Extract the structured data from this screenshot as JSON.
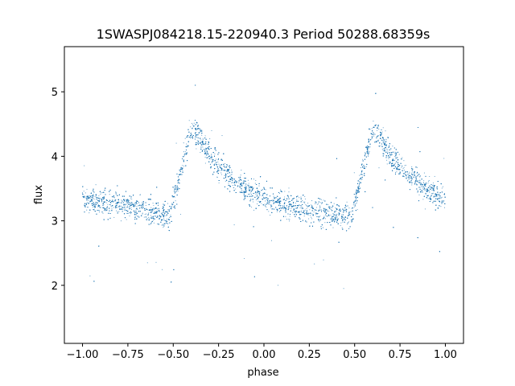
{
  "chart_data": {
    "type": "scatter",
    "title": "1SWASPJ084218.15-220940.3 Period 50288.68359s",
    "xlabel": "phase",
    "ylabel": "flux",
    "xlim": [
      -1.1,
      1.1
    ],
    "ylim": [
      1.1,
      5.7
    ],
    "xticks": [
      -1.0,
      -0.75,
      -0.5,
      -0.25,
      0.0,
      0.25,
      0.5,
      0.75,
      1.0
    ],
    "xtick_labels": [
      "−1.00",
      "−0.75",
      "−0.50",
      "−0.25",
      "0.00",
      "0.25",
      "0.50",
      "0.75",
      "1.00"
    ],
    "yticks": [
      2,
      3,
      4,
      5
    ],
    "ytick_labels": [
      "2",
      "3",
      "4",
      "5"
    ],
    "grid": false,
    "legend": "none",
    "marker_color": "#1f77b4",
    "series": [
      {
        "description_points": "phase-folded light curve, mean flux vs phase (repeated over two cycles)",
        "x": [
          -1.0,
          -0.9,
          -0.8,
          -0.7,
          -0.6,
          -0.52,
          -0.45,
          -0.4,
          -0.35,
          -0.3,
          -0.25,
          -0.2,
          -0.1,
          0.0,
          0.1,
          0.2,
          0.3,
          0.4,
          0.48,
          0.55,
          0.6,
          0.65,
          0.7,
          0.75,
          0.8,
          0.9,
          1.0
        ],
        "y": [
          3.35,
          3.3,
          3.25,
          3.2,
          3.15,
          3.05,
          3.85,
          4.45,
          4.25,
          4.0,
          3.85,
          3.7,
          3.5,
          3.35,
          3.25,
          3.2,
          3.15,
          3.1,
          3.05,
          3.85,
          4.45,
          4.25,
          4.0,
          3.85,
          3.7,
          3.5,
          3.35
        ]
      }
    ]
  }
}
